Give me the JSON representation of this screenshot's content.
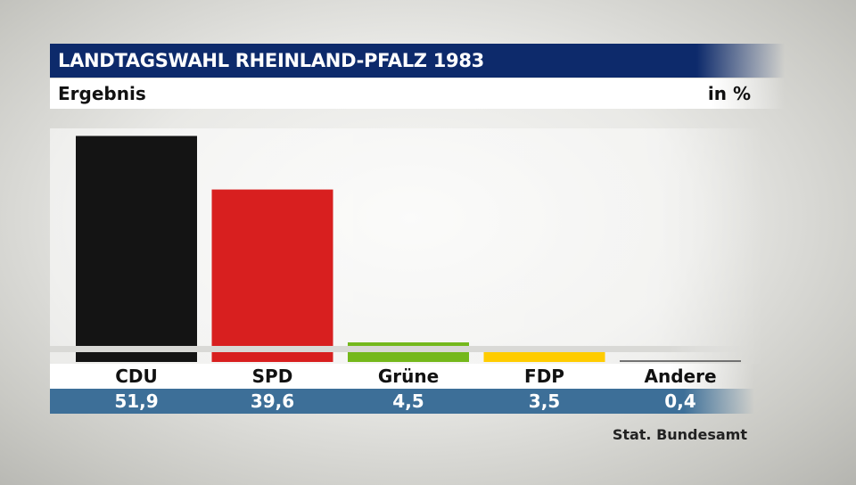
{
  "header": {
    "title": "LANDTAGSWAHL RHEINLAND-PFALZ 1983",
    "subtitle": "Ergebnis",
    "unit_label": "in %"
  },
  "source": "Stat. Bundesamt",
  "chart_data": {
    "type": "bar",
    "categories": [
      "CDU",
      "SPD",
      "Grüne",
      "FDP",
      "Andere"
    ],
    "values": [
      51.9,
      39.6,
      4.5,
      3.5,
      0.4
    ],
    "value_labels": [
      "51,9",
      "39,6",
      "4,5",
      "3,5",
      "0,4"
    ],
    "colors": [
      "#141414",
      "#d81f1f",
      "#74b81b",
      "#ffcc00",
      "#707070"
    ],
    "ylim": [
      0,
      52
    ],
    "grid": false,
    "legend": "none"
  }
}
